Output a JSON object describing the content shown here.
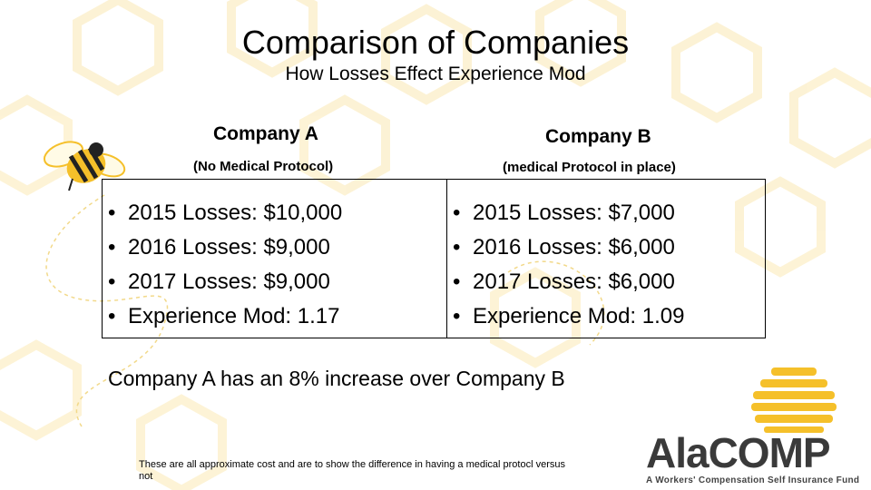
{
  "slide": {
    "title": "Comparison of Companies",
    "subtitle": "How Losses Effect Experience Mod"
  },
  "company_a": {
    "name": "Company A",
    "note": "(No Medical Protocol)",
    "items": [
      "2015 Losses: $10,000",
      "2016 Losses: $9,000",
      "2017 Losses: $9,000",
      "Experience Mod: 1.17"
    ]
  },
  "company_b": {
    "name": "Company B",
    "note": "(medical Protocol in place)",
    "items": [
      "2015 Losses: $7,000",
      "2016 Losses: $6,000",
      "2017 Losses: $6,000",
      "Experience Mod: 1.09"
    ]
  },
  "summary": "Company A has an 8% increase over Company B",
  "footnote": "These are all approximate cost and are to show the difference in having a medical protocl versus not",
  "logo": {
    "name": "AlaCOMP",
    "tagline": "A Workers' Compensation Self Insurance Fund"
  },
  "colors": {
    "honeycomb": "#fbe7a8",
    "bee_yellow": "#f5c02a",
    "text": "#000000"
  }
}
